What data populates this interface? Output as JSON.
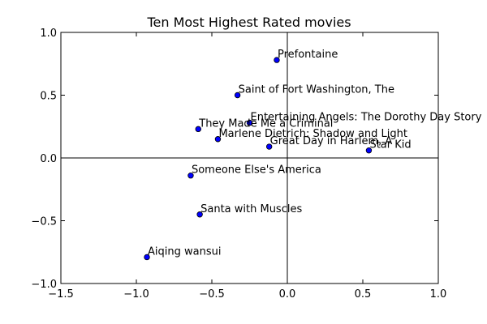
{
  "chart_data": {
    "type": "scatter",
    "title": "Ten Most Highest Rated movies",
    "xlabel": "",
    "ylabel": "",
    "xlim": [
      -1.5,
      1.0
    ],
    "ylim": [
      -1.0,
      1.0
    ],
    "xticks": [
      -1.5,
      -1.0,
      -0.5,
      0.0,
      0.5,
      1.0
    ],
    "yticks": [
      -1.0,
      -0.5,
      0.0,
      0.5,
      1.0
    ],
    "xtick_labels": [
      "−1.5",
      "−1.0",
      "−0.5",
      "0.0",
      "0.5",
      "1.0"
    ],
    "ytick_labels": [
      "−1.0",
      "−0.5",
      "0.0",
      "0.5",
      "1.0"
    ],
    "grid": false,
    "reference_lines": {
      "x": 0.0,
      "y": 0.0
    },
    "points": [
      {
        "label": "Prefontaine",
        "x": -0.07,
        "y": 0.78
      },
      {
        "label": "Saint of Fort Washington, The",
        "x": -0.33,
        "y": 0.5
      },
      {
        "label": "Entertaining Angels: The Dorothy Day Story",
        "x": -0.25,
        "y": 0.28
      },
      {
        "label": "They Made Me a Criminal",
        "x": -0.59,
        "y": 0.23
      },
      {
        "label": "Marlene Dietrich: Shadow and Light",
        "x": -0.46,
        "y": 0.15
      },
      {
        "label": "Great Day in Harlem, A",
        "x": -0.12,
        "y": 0.09
      },
      {
        "label": "Star Kid",
        "x": 0.54,
        "y": 0.06
      },
      {
        "label": "Someone Else's America",
        "x": -0.64,
        "y": -0.14
      },
      {
        "label": "Santa with Muscles",
        "x": -0.58,
        "y": -0.45
      },
      {
        "label": "Aiqing wansui",
        "x": -0.93,
        "y": -0.79
      }
    ],
    "marker_color": "#0000ff",
    "marker_edge": "#000000"
  }
}
